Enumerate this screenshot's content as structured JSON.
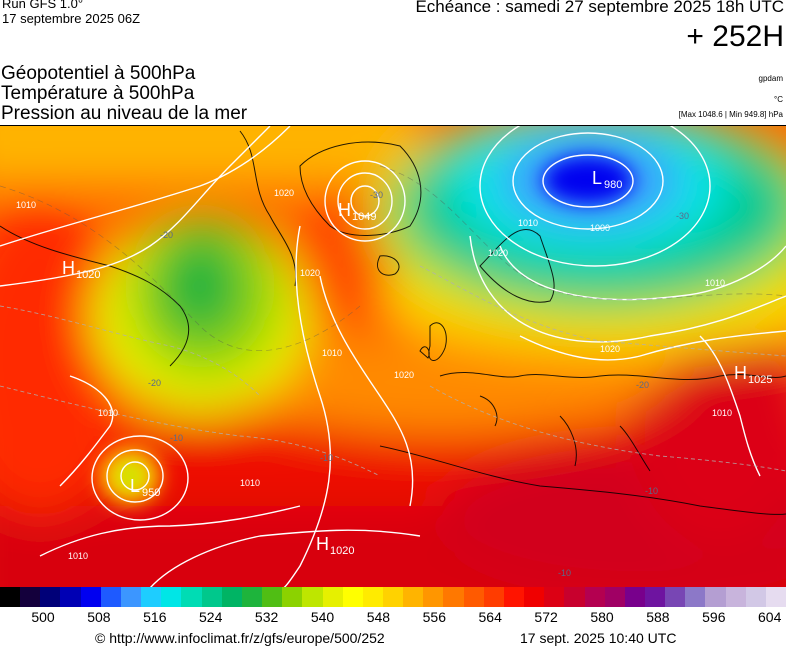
{
  "header": {
    "run": "Run GFS 1.0°",
    "run_date": "17 septembre 2025 06Z",
    "echeance": "Echéance : samedi 27 septembre 2025 18h UTC",
    "lead_time": "+ 252H"
  },
  "variables": [
    "Géopotentiel à 500hPa",
    "Température à 500hPa",
    "Pression au niveau de la mer"
  ],
  "units": {
    "geopotential": "gpdam",
    "temperature": "°C",
    "maxmin": "[Max 1048.6 | Min 949.8] hPa"
  },
  "pressure_centers": [
    {
      "type": "H",
      "value": "1020",
      "place": "north-atlantic-west"
    },
    {
      "type": "H",
      "value": "1049",
      "place": "greenland"
    },
    {
      "type": "L",
      "value": "980",
      "place": "barents-sea"
    },
    {
      "type": "H",
      "value": "1025",
      "place": "black-sea"
    },
    {
      "type": "L",
      "value": "950",
      "place": "central-atlantic"
    },
    {
      "type": "H",
      "value": "1020",
      "place": "azores"
    }
  ],
  "isobar_labels": [
    "1010",
    "1020",
    "1020",
    "1010",
    "1020",
    "1010",
    "1010",
    "1000",
    "1010",
    "1020",
    "1010",
    "1020",
    "1010",
    "1010"
  ],
  "temperature_labels": [
    "-30",
    "-20",
    "-30",
    "-20",
    "-10",
    "-10",
    "-20",
    "-10",
    "-10"
  ],
  "colorbar": {
    "labels": [
      "500",
      "508",
      "516",
      "524",
      "532",
      "540",
      "548",
      "556",
      "564",
      "572",
      "580",
      "588",
      "596",
      "604"
    ],
    "colors": [
      "#000000",
      "#14003c",
      "#000078",
      "#0000b4",
      "#0000f0",
      "#1e5aff",
      "#3c96ff",
      "#1ecdff",
      "#00e6e6",
      "#00dcb4",
      "#00c88c",
      "#00b464",
      "#1eb43c",
      "#50be14",
      "#8cd200",
      "#bee600",
      "#e6f000",
      "#ffff00",
      "#ffeb00",
      "#ffd200",
      "#ffb400",
      "#ff9600",
      "#ff7800",
      "#ff5a00",
      "#ff3c00",
      "#ff1400",
      "#f00000",
      "#dc0014",
      "#c8002d",
      "#b40050",
      "#a00064",
      "#78008c",
      "#6e14a0",
      "#7846b4",
      "#8c78c8",
      "#b49ed2",
      "#c8b4dc",
      "#d2c8e6",
      "#e6dcf0"
    ]
  },
  "footer": {
    "copyright": "© http://www.infoclimat.fr/z/gfs/europe/500/252",
    "generated": "17 sept. 2025 10:40 UTC"
  }
}
